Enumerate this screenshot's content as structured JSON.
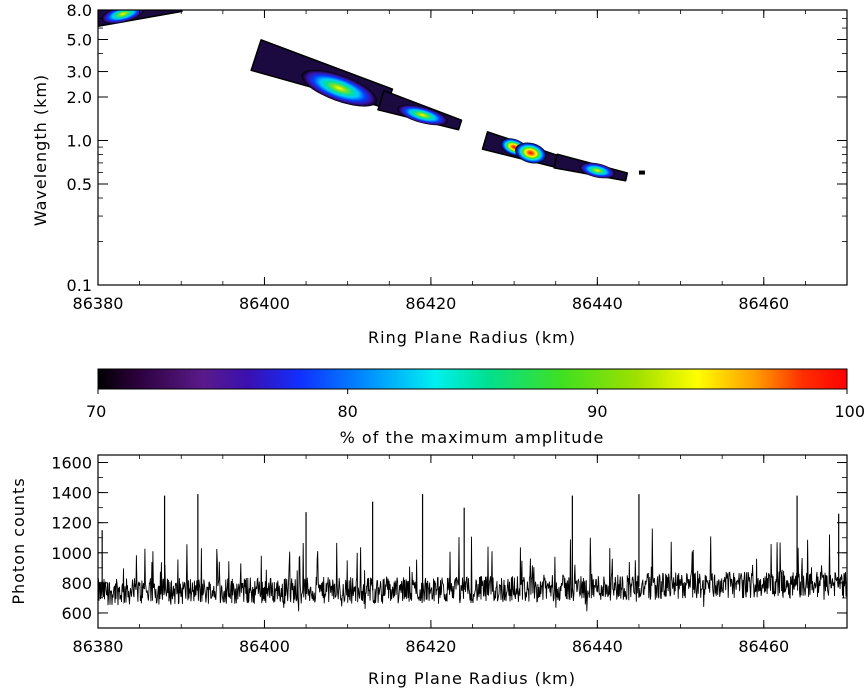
{
  "chart_data": [
    {
      "type": "heatmap",
      "title": "",
      "xlabel": "Ring Plane Radius (km)",
      "ylabel": "Wavelength (km)",
      "xlim": [
        86380,
        86470
      ],
      "ylim": [
        0.1,
        8.0
      ],
      "yscale": "log",
      "x_ticks": [
        "86380",
        "86400",
        "86420",
        "86440",
        "86460"
      ],
      "x_tick_values": [
        86380,
        86400,
        86420,
        86440,
        86460
      ],
      "y_ticks": [
        "0.1",
        "0.5",
        "1.0",
        "2.0",
        "3.0",
        "5.0",
        "8.0"
      ],
      "y_tick_values": [
        0.1,
        0.5,
        1.0,
        2.0,
        3.0,
        5.0,
        8.0
      ],
      "features": [
        {
          "radius": 86383,
          "wavelength": 7.5,
          "peak_pct": 84
        },
        {
          "radius": 86409,
          "wavelength": 2.3,
          "peak_pct": 86
        },
        {
          "radius": 86419,
          "wavelength": 1.5,
          "peak_pct": 84
        },
        {
          "radius": 86430,
          "wavelength": 0.9,
          "peak_pct": 93
        },
        {
          "radius": 86432,
          "wavelength": 0.82,
          "peak_pct": 98
        },
        {
          "radius": 86440,
          "wavelength": 0.62,
          "peak_pct": 91
        }
      ]
    },
    {
      "type": "colorbar",
      "xlabel": "% of the maximum amplitude",
      "range": [
        70,
        100
      ],
      "ticks": [
        "70",
        "80",
        "90",
        "100"
      ],
      "tick_values": [
        70,
        80,
        90,
        100
      ]
    },
    {
      "type": "line",
      "title": "",
      "xlabel": "Ring Plane Radius (km)",
      "ylabel": "Photon counts",
      "xlim": [
        86380,
        86470
      ],
      "ylim": [
        500,
        1650
      ],
      "x_ticks": [
        "86380",
        "86400",
        "86420",
        "86440",
        "86460"
      ],
      "x_tick_values": [
        86380,
        86400,
        86420,
        86440,
        86460
      ],
      "y_ticks": [
        "600",
        "800",
        "1000",
        "1200",
        "1400",
        "1600"
      ],
      "y_tick_values": [
        600,
        800,
        1000,
        1200,
        1400,
        1600
      ],
      "series": [
        {
          "baseline": [
            {
              "x": 86380,
              "y": 740
            },
            {
              "x": 86400,
              "y": 750
            },
            {
              "x": 86420,
              "y": 750
            },
            {
              "x": 86440,
              "y": 770
            },
            {
              "x": 86460,
              "y": 790
            },
            {
              "x": 86470,
              "y": 790
            }
          ],
          "peaks": [
            {
              "x": 86380.5,
              "y": 1150
            },
            {
              "x": 86388,
              "y": 1380
            },
            {
              "x": 86392,
              "y": 1390
            },
            {
              "x": 86405,
              "y": 1270
            },
            {
              "x": 86413,
              "y": 1340
            },
            {
              "x": 86419,
              "y": 1390
            },
            {
              "x": 86424,
              "y": 1300
            },
            {
              "x": 86437,
              "y": 1380
            },
            {
              "x": 86445,
              "y": 1390
            },
            {
              "x": 86464,
              "y": 1380
            },
            {
              "x": 86469,
              "y": 1260
            }
          ]
        }
      ]
    }
  ]
}
